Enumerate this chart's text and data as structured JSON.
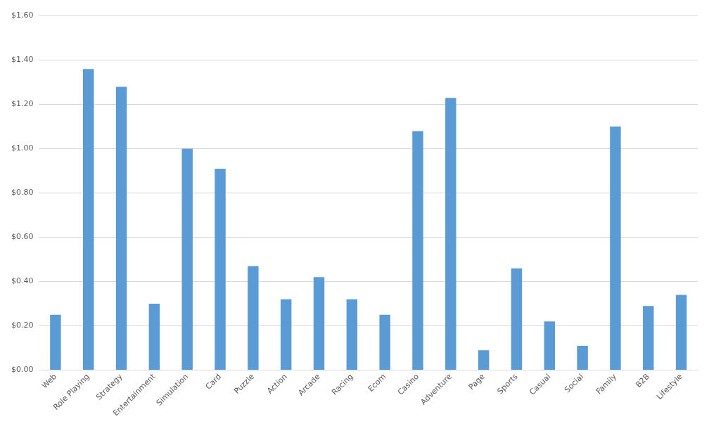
{
  "chart_data": {
    "type": "bar",
    "categories": [
      "Web",
      "Role Playing",
      "Strategy",
      "Entertainment",
      "Simulation",
      "Card",
      "Puzzle",
      "Action",
      "Arcade",
      "Racing",
      "Ecom",
      "Casino",
      "Adventure",
      "Page",
      "Sports",
      "Casual",
      "Social",
      "Family",
      "B2B",
      "Lifestyle"
    ],
    "values": [
      0.25,
      1.36,
      1.28,
      0.3,
      1.0,
      0.91,
      0.47,
      0.32,
      0.42,
      0.32,
      0.25,
      1.08,
      1.23,
      0.09,
      0.46,
      0.22,
      0.11,
      1.1,
      0.29,
      0.34
    ],
    "color": "#5b9bd5",
    "ylim": [
      0,
      1.6
    ],
    "yticks": [
      {
        "value": 0,
        "label": "$0.00"
      },
      {
        "value": 0.2,
        "label": "$0.20"
      },
      {
        "value": 0.4,
        "label": "$0.40"
      },
      {
        "value": 0.6,
        "label": "$0.60"
      },
      {
        "value": 0.8,
        "label": "$0.80"
      },
      {
        "value": 1.0,
        "label": "$1.00"
      },
      {
        "value": 1.2,
        "label": "$1.20"
      },
      {
        "value": 1.4,
        "label": "$1.40"
      },
      {
        "value": 1.6,
        "label": "$1.60"
      }
    ],
    "grid": "y",
    "legend": false
  }
}
